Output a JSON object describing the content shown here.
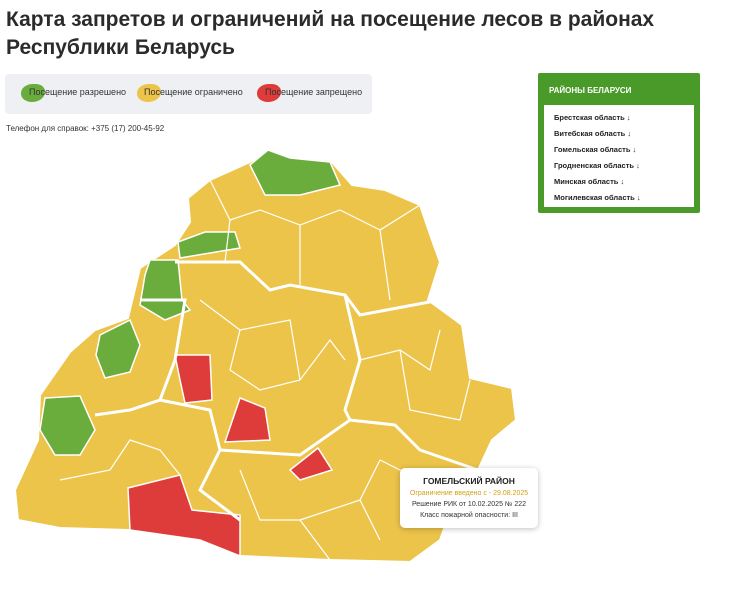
{
  "header": {
    "title": "Карта запретов и ограничений на посещение лесов в районах Республики Беларусь"
  },
  "legend": {
    "items": [
      "Посещение разрешено",
      "Посещение ограничено",
      "Посещение запрещено"
    ]
  },
  "phone": "Телефон для справок: +375 (17) 200-45-92",
  "regions_panel": {
    "title": "РАЙОНЫ БЕЛАРУСИ",
    "items": [
      "Брестская область ↓",
      "Витебская область ↓",
      "Гомельская область ↓",
      "Гродненская область ↓",
      "Минская область ↓",
      "Могилевская область ↓"
    ]
  },
  "tooltip": {
    "title": "ГОМЕЛЬСКИЙ РАЙОН",
    "status": "Ограничение введено с - 29.08.2025",
    "decision": "Решение РИК от 10.02.2025 № 222",
    "fire_class": "Класс пожарной опасности: III"
  }
}
